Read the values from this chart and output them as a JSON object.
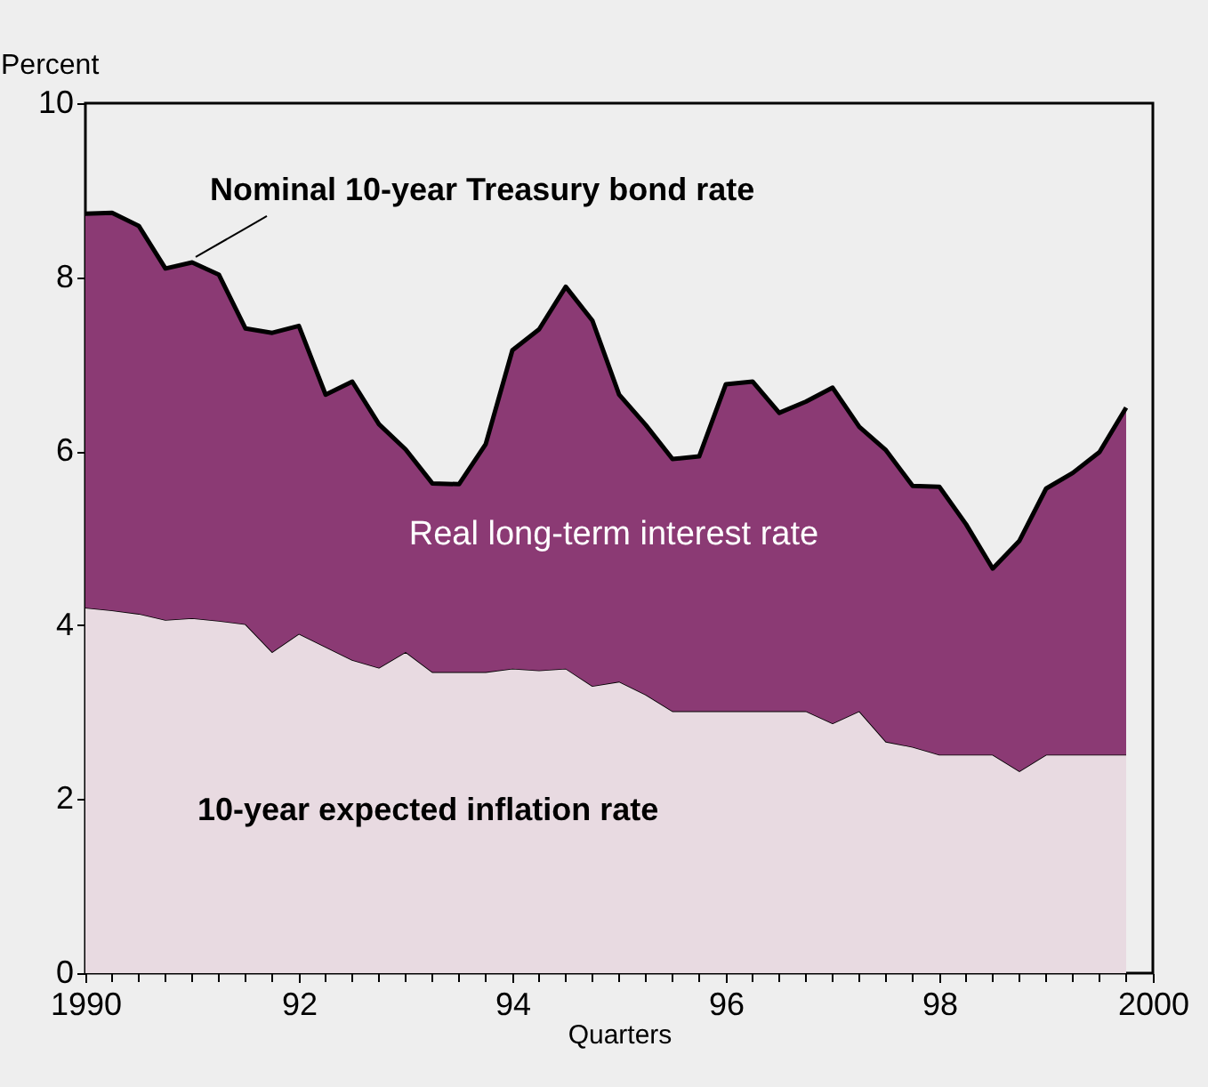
{
  "chart_data": {
    "type": "area",
    "stacked": true,
    "ylabel": "Percent",
    "xlabel": "Quarters",
    "annotations": [
      {
        "text": "Nominal 10-year Treasury bond rate",
        "x": 1991,
        "y": 8.17
      }
    ],
    "x": [
      1990,
      1990.25,
      1990.5,
      1990.75,
      1991,
      1991.25,
      1991.5,
      1991.75,
      1992,
      1992.25,
      1992.5,
      1992.75,
      1993,
      1993.25,
      1993.5,
      1993.75,
      1994,
      1994.25,
      1994.5,
      1994.75,
      1995,
      1995.25,
      1995.5,
      1995.75,
      1996,
      1996.25,
      1996.5,
      1996.75,
      1997,
      1997.25,
      1997.5,
      1997.75,
      1998,
      1998.25,
      1998.5,
      1998.75,
      1999,
      1999.25,
      1999.5,
      1999.75
    ],
    "series": [
      {
        "name": "10-year expected inflation rate",
        "color": "#e8dae1",
        "values": [
          4.2,
          4.17,
          4.13,
          4.06,
          4.08,
          4.05,
          4.01,
          3.69,
          3.9,
          3.75,
          3.6,
          3.51,
          3.69,
          3.46,
          3.46,
          3.46,
          3.5,
          3.48,
          3.5,
          3.3,
          3.35,
          3.2,
          3.01,
          3.01,
          3.01,
          3.01,
          3.01,
          3.01,
          2.87,
          3.01,
          2.66,
          2.6,
          2.51,
          2.51,
          2.51,
          2.32,
          2.51,
          2.51,
          2.51,
          2.51
        ]
      },
      {
        "name": "Real long-term interest rate",
        "color": "#8b3a74",
        "values": [
          4.53,
          4.57,
          4.46,
          4.04,
          4.09,
          3.98,
          3.4,
          3.67,
          3.54,
          2.9,
          3.2,
          2.8,
          2.33,
          2.17,
          2.16,
          2.62,
          3.66,
          3.92,
          4.39,
          4.2,
          3.3,
          3.1,
          2.9,
          2.93,
          3.76,
          3.79,
          3.43,
          3.56,
          3.86,
          3.27,
          3.35,
          3.0,
          3.08,
          2.65,
          2.14,
          2.65,
          3.06,
          3.24,
          3.48,
          3.99
        ]
      }
    ],
    "xlim": [
      1990,
      2000
    ],
    "xticks": [
      {
        "value": 1990,
        "label": "1990"
      },
      {
        "value": 1990.25,
        "label": null
      },
      {
        "value": 1990.5,
        "label": null
      },
      {
        "value": 1990.75,
        "label": null
      },
      {
        "value": 1991,
        "label": null
      },
      {
        "value": 1991.25,
        "label": null
      },
      {
        "value": 1991.5,
        "label": null
      },
      {
        "value": 1991.75,
        "label": null
      },
      {
        "value": 1992,
        "label": "92"
      },
      {
        "value": 1992.25,
        "label": null
      },
      {
        "value": 1992.5,
        "label": null
      },
      {
        "value": 1992.75,
        "label": null
      },
      {
        "value": 1993,
        "label": null
      },
      {
        "value": 1993.25,
        "label": null
      },
      {
        "value": 1993.5,
        "label": null
      },
      {
        "value": 1993.75,
        "label": null
      },
      {
        "value": 1994,
        "label": "94"
      },
      {
        "value": 1994.25,
        "label": null
      },
      {
        "value": 1994.5,
        "label": null
      },
      {
        "value": 1994.75,
        "label": null
      },
      {
        "value": 1995,
        "label": null
      },
      {
        "value": 1995.25,
        "label": null
      },
      {
        "value": 1995.5,
        "label": null
      },
      {
        "value": 1995.75,
        "label": null
      },
      {
        "value": 1996,
        "label": "96"
      },
      {
        "value": 1996.25,
        "label": null
      },
      {
        "value": 1996.5,
        "label": null
      },
      {
        "value": 1996.75,
        "label": null
      },
      {
        "value": 1997,
        "label": null
      },
      {
        "value": 1997.25,
        "label": null
      },
      {
        "value": 1997.5,
        "label": null
      },
      {
        "value": 1997.75,
        "label": null
      },
      {
        "value": 1998,
        "label": "98"
      },
      {
        "value": 1998.25,
        "label": null
      },
      {
        "value": 1998.5,
        "label": null
      },
      {
        "value": 1998.75,
        "label": null
      },
      {
        "value": 1999,
        "label": null
      },
      {
        "value": 1999.25,
        "label": null
      },
      {
        "value": 1999.5,
        "label": null
      },
      {
        "value": 1999.75,
        "label": null
      },
      {
        "value": 2000,
        "label": "2000"
      }
    ],
    "ylim": [
      0,
      10
    ],
    "yticks": [
      0,
      2,
      4,
      6,
      8,
      10
    ],
    "grid": false,
    "legend": false
  }
}
